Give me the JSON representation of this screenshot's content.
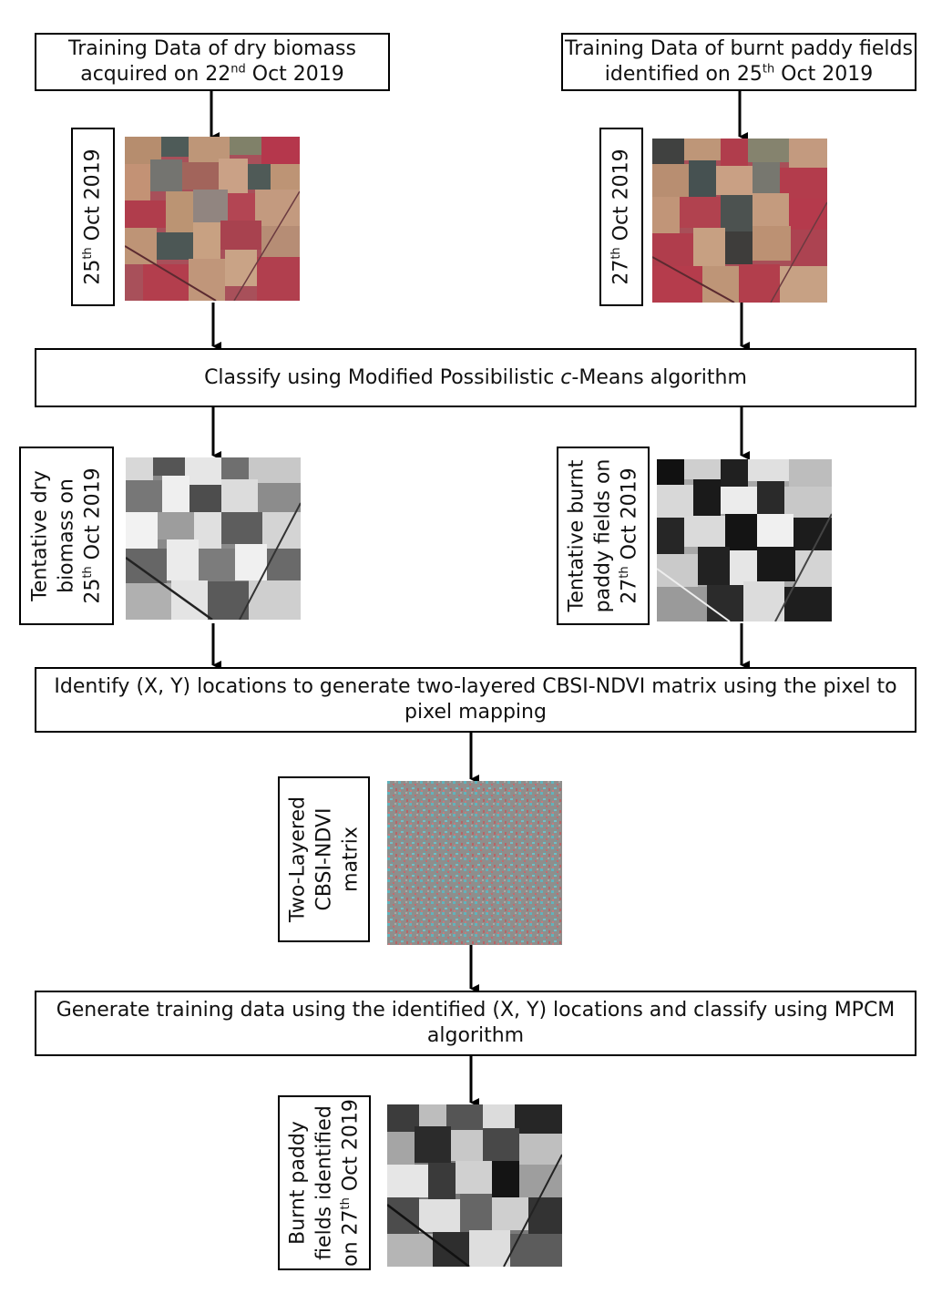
{
  "top_left": {
    "line1": "Training Data of dry biomass",
    "line2_pre": "acquired on 22",
    "line2_sup": "nd",
    "line2_post": " Oct 2019"
  },
  "top_right": {
    "line1": "Training Data of burnt paddy fields",
    "line2_pre": "identified on 25",
    "line2_sup": "th",
    "line2_post": " Oct 2019"
  },
  "date_left": {
    "pre": "25",
    "sup": "th",
    "post": " Oct 2019"
  },
  "date_right": {
    "pre": "27",
    "sup": "th",
    "post": " Oct 2019"
  },
  "classify": {
    "pre": "Classify using Modified Possibilistic ",
    "italic": "c",
    "post": "-Means algorithm"
  },
  "tentative_left": {
    "line1": "Tentative dry",
    "line2": "biomass on",
    "line3_pre": "25",
    "line3_sup": "th",
    "line3_post": " Oct 2019"
  },
  "tentative_right": {
    "line1": "Tentative burnt",
    "line2": "paddy fields on",
    "line3_pre": "27",
    "line3_sup": "th",
    "line3_post": " Oct 2019"
  },
  "identify": {
    "line1": "Identify (X, Y) locations to generate two-layered CBSI-NDVI matrix using the pixel to",
    "line2": "pixel mapping"
  },
  "matrix_label": {
    "line1": "Two-Layered",
    "line2": "CBSI-NDVI",
    "line3": "matrix"
  },
  "generate": {
    "line1": "Generate training data using the identified (X, Y) locations and classify using MPCM",
    "line2": "algorithm"
  },
  "result_label": {
    "line1": "Burnt paddy",
    "line2": "fields identified",
    "line3_pre": "on 27",
    "line3_sup": "th",
    "line3_post": " Oct 2019"
  },
  "colors": {
    "false_color_red": "#b23a4a",
    "false_color_tan": "#b99872",
    "matrix_teal": "#5fb4bd",
    "matrix_pink": "#c46a6e"
  }
}
